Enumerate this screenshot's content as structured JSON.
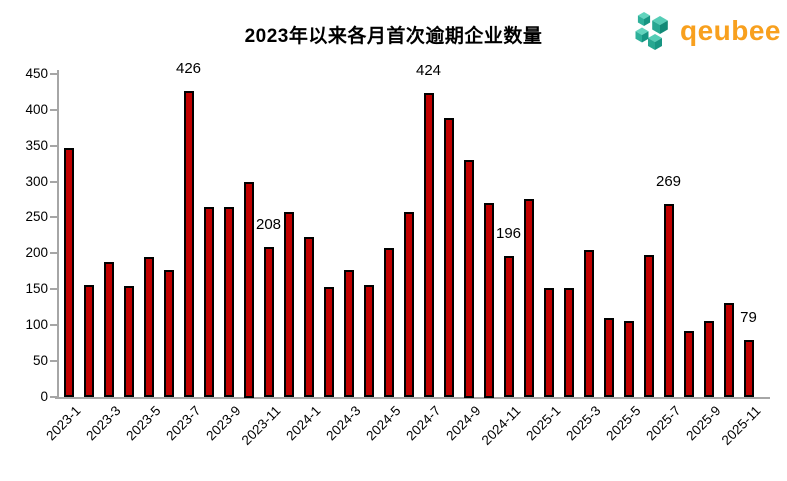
{
  "header": {
    "title": "2023年以来各月首次逾期企业数量"
  },
  "logo": {
    "text": "qeubee",
    "text_color": "#F8A01E",
    "cube_top_color": "#62d4bd",
    "cube_left_color": "#2eb09a",
    "cube_right_color": "#179582"
  },
  "chart_data": {
    "type": "bar",
    "title": "2023年以来各月首次逾期企业数量",
    "xlabel": "",
    "ylabel": "",
    "ylim": [
      0,
      450
    ],
    "ytick_step": 50,
    "grid": false,
    "legend": "none",
    "bar_color": "#C00000",
    "bar_border_color": "#000000",
    "axis_color": "#A6A6A6",
    "categories": [
      "2023-1",
      "2023-2",
      "2023-3",
      "2023-4",
      "2023-5",
      "2023-6",
      "2023-7",
      "2023-8",
      "2023-9",
      "2023-10",
      "2023-11",
      "2023-12",
      "2024-1",
      "2024-2",
      "2024-3",
      "2024-4",
      "2024-5",
      "2024-6",
      "2024-7",
      "2024-8",
      "2024-9",
      "2024-10",
      "2024-11",
      "2024-12",
      "2025-1",
      "2025-2",
      "2025-3",
      "2025-4",
      "2025-5",
      "2025-6",
      "2025-7",
      "2025-8",
      "2025-9",
      "2025-10",
      "2025-11"
    ],
    "values": [
      347,
      156,
      187,
      154,
      194,
      177,
      426,
      265,
      264,
      300,
      208,
      258,
      223,
      153,
      176,
      155,
      207,
      258,
      424,
      388,
      330,
      270,
      196,
      275,
      152,
      151,
      205,
      110,
      106,
      198,
      269,
      92,
      106,
      130,
      79
    ],
    "x_tick_every": 2,
    "labeled_indices": [
      6,
      10,
      18,
      22,
      30,
      34
    ],
    "data_label_values": [
      "426",
      "208",
      "424",
      "196",
      "269",
      "79"
    ]
  }
}
